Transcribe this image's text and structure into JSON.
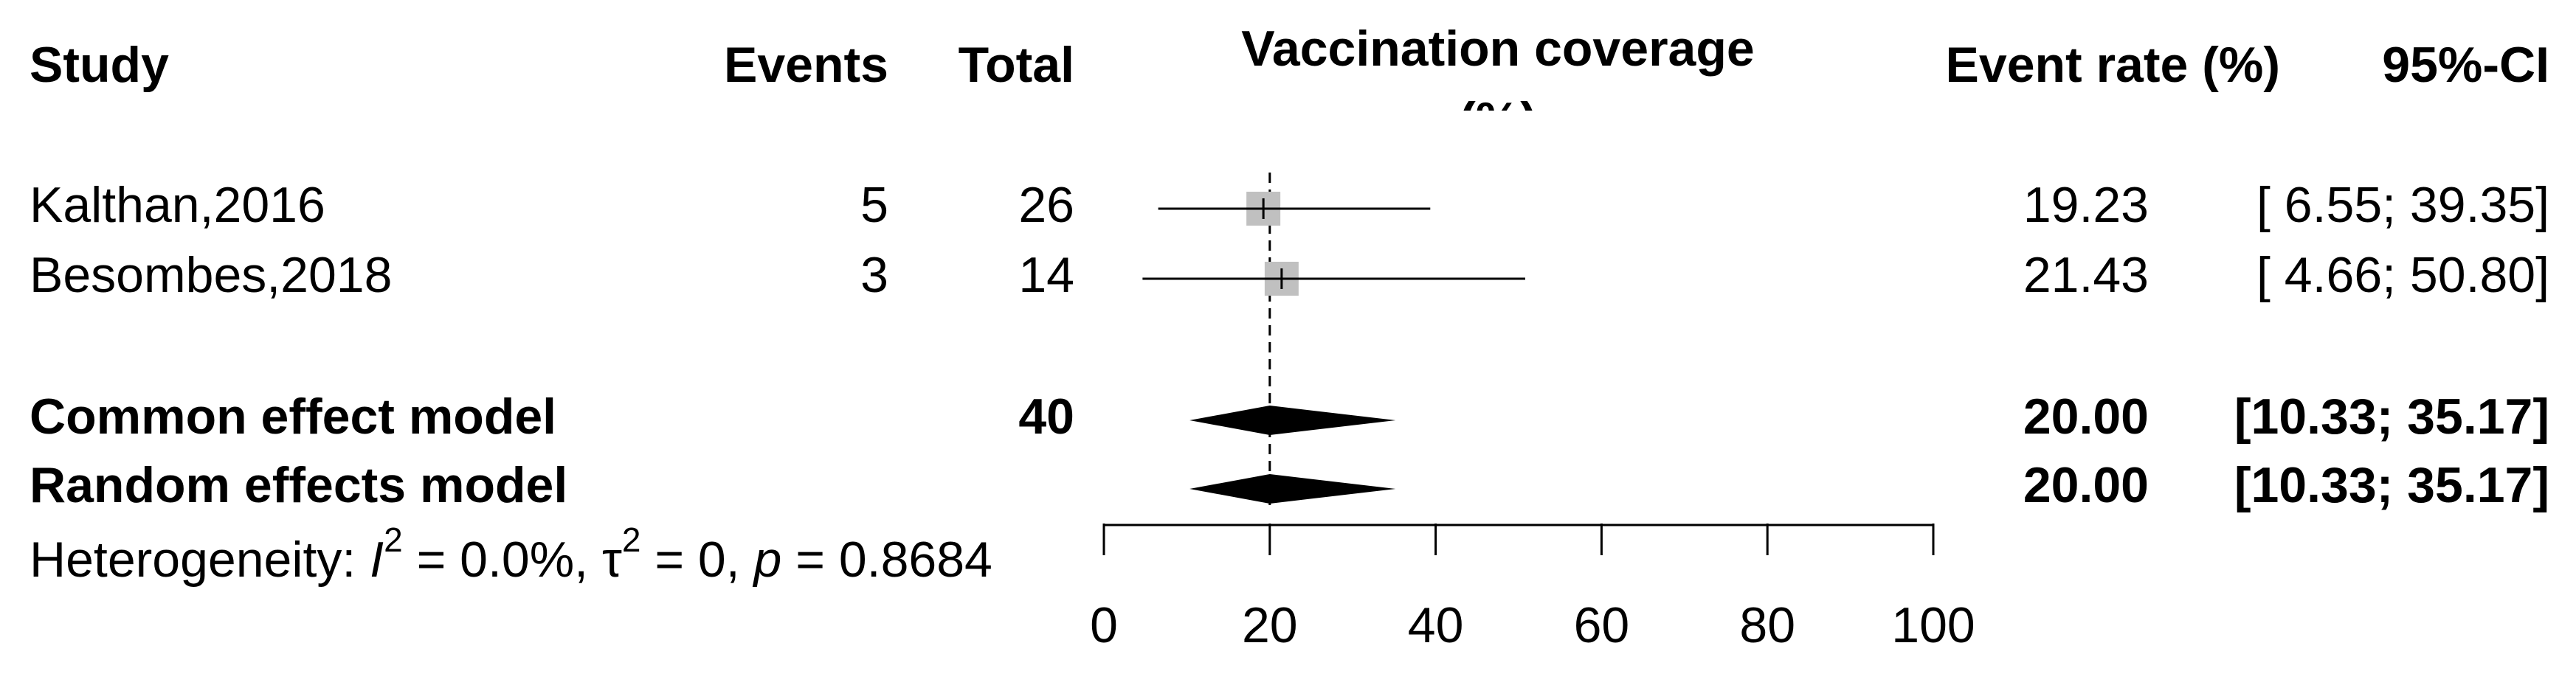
{
  "chart_data": {
    "type": "forest",
    "title_lines": [
      "Vaccination coverage",
      "(%)"
    ],
    "columns": {
      "study": "Study",
      "events": "Events",
      "total": "Total",
      "rate": "Event rate (%)",
      "ci": "95%-CI"
    },
    "studies": [
      {
        "name": "Kalthan,2016",
        "events": 5,
        "total": 26,
        "estimate": 19.23,
        "ci_lower": 6.55,
        "ci_upper": 39.35,
        "ci_label": "[ 6.55; 39.35]"
      },
      {
        "name": "Besombes,2018",
        "events": 3,
        "total": 14,
        "estimate": 21.43,
        "ci_lower": 4.66,
        "ci_upper": 50.8,
        "ci_label": "[ 4.66; 50.80]"
      }
    ],
    "pooled": [
      {
        "name": "Common effect model",
        "total": 40,
        "estimate": 20,
        "estimate_label": "20.00",
        "ci_lower": 10.33,
        "ci_upper": 35.17,
        "ci_label": "[10.33; 35.17]"
      },
      {
        "name": "Random effects model",
        "estimate": 20,
        "estimate_label": "20.00",
        "ci_lower": 10.33,
        "ci_upper": 35.17,
        "ci_label": "[10.33; 35.17]"
      }
    ],
    "heterogeneity": [
      "Heterogeneity: ",
      "I",
      "2",
      " = 0.0%, ",
      "τ",
      "2",
      " = 0, ",
      "p",
      " = 0.8684"
    ],
    "xlim": [
      0,
      100
    ],
    "xticks": [
      0,
      20,
      40,
      60,
      80,
      100
    ],
    "square_color": "#c0c0c0",
    "diamond_color": "#000000"
  }
}
